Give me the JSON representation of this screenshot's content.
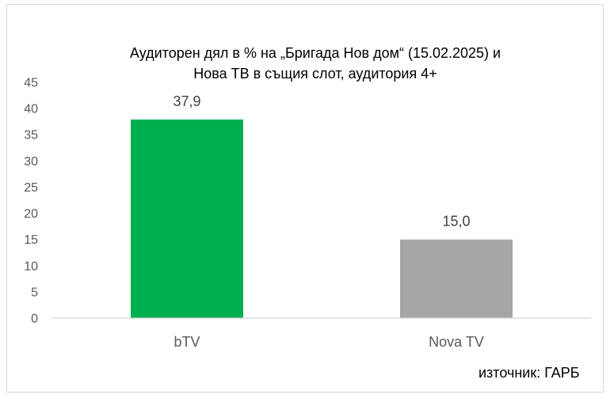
{
  "chart_data": {
    "type": "bar",
    "title_lines": [
      "Аудиторен дял в % на „Бригада Нов дом“ (15.02.2025) и",
      "Нова ТВ в същия слот, аудитория 4+"
    ],
    "categories": [
      "bTV",
      "Nova TV"
    ],
    "values": [
      37.9,
      15.0
    ],
    "data_labels": [
      "37,9",
      "15,0"
    ],
    "colors": [
      "#00b050",
      "#a6a6a6"
    ],
    "ylim": [
      0,
      45
    ],
    "yticks": [
      0,
      5,
      10,
      15,
      20,
      25,
      30,
      35,
      40,
      45
    ],
    "xlabel": "",
    "ylabel": "",
    "grid": false,
    "legend": "none"
  },
  "source": "източник: ГАРБ"
}
